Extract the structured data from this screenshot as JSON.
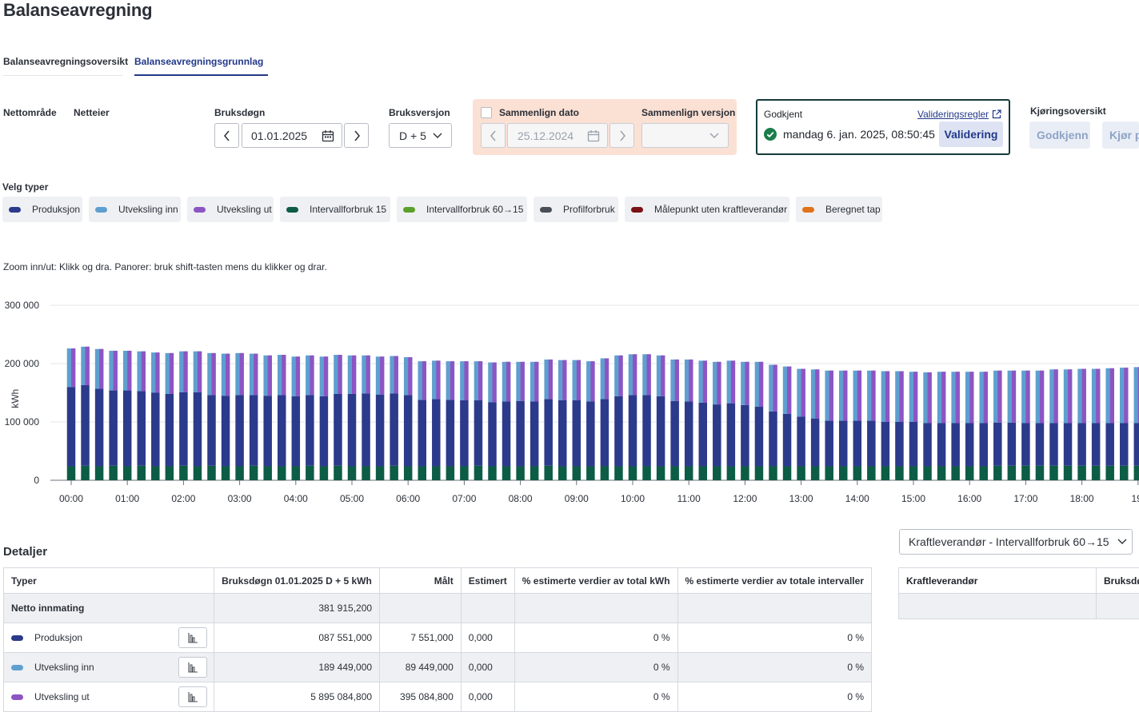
{
  "page_title": "Balanseavregning",
  "tabs": [
    {
      "label": "Balanseavregningsoversikt",
      "active": false
    },
    {
      "label": "Balanseavregningsgrunnlag",
      "active": true
    }
  ],
  "filters": {
    "nettomrade_label": "Nettområde",
    "netteier_label": "Netteier",
    "bruksdogn_label": "Bruksdøgn",
    "bruksdogn_value": "01.01.2025",
    "bruksversjon_label": "Bruksversjon",
    "bruksversjon_value": "D + 5",
    "compare_date_label": "Sammenlign dato",
    "compare_date_value": "25.12.2024",
    "compare_version_label": "Sammenlign versjon",
    "compare_version_value": ""
  },
  "approval": {
    "label": "Godkjent",
    "rules_link": "Valideringsregler",
    "timestamp": "mandag 6. jan. 2025, 08:50:45",
    "validate_button": "Validering"
  },
  "run_overview": {
    "label": "Kjøringsoversikt",
    "approve_button": "Godkjenn",
    "run_button": "Kjør p"
  },
  "types": {
    "label": "Velg typer",
    "items": [
      {
        "label": "Produksjon",
        "color": "#2c3a8c"
      },
      {
        "label": "Utveksling inn",
        "color": "#5f9fd0"
      },
      {
        "label": "Utveksling ut",
        "color": "#8d55c4"
      },
      {
        "label": "Intervallforbruk 15",
        "color": "#0d5c45"
      },
      {
        "label": "Intervallforbruk 60→15",
        "color": "#5aa02c"
      },
      {
        "label": "Profilforbruk",
        "color": "#4a4f57"
      },
      {
        "label": "Målepunkt uten kraftleverandør",
        "color": "#7a1216"
      },
      {
        "label": "Beregnet tap",
        "color": "#e0721a"
      }
    ]
  },
  "zoom_hint": "Zoom inn/ut: Klikk og dra. Panorer: bruk shift-tasten mens du klikker og drar.",
  "chart_data": {
    "type": "bar",
    "stacked": true,
    "ylabel": "kWh",
    "ylim": [
      0,
      300000
    ],
    "yticks": [
      "0",
      "100 000",
      "200 000",
      "300 000"
    ],
    "ytick_values": [
      0,
      100000,
      200000,
      300000
    ],
    "xticks": [
      "00:00",
      "01:00",
      "02:00",
      "03:00",
      "04:00",
      "05:00",
      "06:00",
      "07:00",
      "08:00",
      "09:00",
      "10:00",
      "11:00",
      "12:00",
      "13:00",
      "14:00",
      "15:00",
      "16:00",
      "17:00",
      "18:00",
      "19:"
    ],
    "grid": true,
    "series": [
      {
        "name": "Intervallforbruk 15",
        "color": "#0d5c45",
        "values": [
          24000,
          25000,
          24000,
          25000,
          24000,
          25000,
          24000,
          24000,
          25000,
          24000,
          25000,
          24000,
          24000,
          25000,
          24000,
          24000,
          24000,
          25000,
          24000,
          25000,
          24000,
          24000,
          24000,
          25000,
          24000,
          24000,
          24000,
          24000,
          24000,
          25000,
          24000,
          24000,
          24000,
          24000,
          25000,
          24000,
          24000,
          24000,
          24000,
          24000,
          24000,
          24000,
          24000,
          24000,
          24000,
          24000,
          24000,
          24000,
          24000,
          24000,
          24000,
          24000,
          24000,
          24000,
          24000,
          24000,
          24000,
          24000,
          24000,
          24000,
          24000,
          24000,
          24000,
          24000,
          24000,
          24000,
          25000,
          25000,
          25000,
          25000,
          25000,
          25000,
          25000,
          25000,
          25000,
          25000,
          25000,
          25000,
          25000,
          25000,
          25000,
          25000,
          25000,
          25000,
          25000,
          25000,
          25000,
          25000,
          25000,
          25000,
          25000,
          25000,
          25000,
          25000,
          25000,
          25000,
          25000,
          25000,
          25000,
          25000,
          25000,
          25000,
          25000,
          25000,
          25000,
          25000,
          25000,
          25000,
          25000,
          25000,
          25000,
          25000,
          25000,
          25000
        ]
      },
      {
        "name": "Produksjon",
        "color": "#2c3a8c",
        "values": [
          136000,
          138000,
          133000,
          129000,
          130000,
          128000,
          126000,
          124000,
          126000,
          127000,
          121000,
          121000,
          122000,
          121000,
          121000,
          122000,
          120000,
          121000,
          120000,
          123000,
          124000,
          125000,
          123000,
          124000,
          122000,
          114000,
          115000,
          114000,
          113000,
          112000,
          110000,
          111000,
          112000,
          111000,
          114000,
          113000,
          113000,
          111000,
          115000,
          120000,
          122000,
          122000,
          120000,
          112000,
          111000,
          109000,
          106000,
          108000,
          105000,
          102000,
          94000,
          90000,
          85000,
          82000,
          78000,
          78000,
          78000,
          78000,
          76000,
          76000,
          76000,
          74000,
          74000,
          74000,
          74000,
          74000,
          74000,
          74000,
          73000,
          73000,
          73000,
          73000,
          73000,
          73000,
          73000,
          73000,
          73000,
          73000,
          73000,
          73000,
          73000,
          73000,
          73000,
          73000,
          73000,
          73000,
          73000,
          73000,
          73000,
          73000,
          73000,
          73000,
          73000,
          73000,
          73000,
          73000,
          73000,
          73000,
          73000,
          73000,
          73000,
          73000,
          73000,
          73000,
          73000,
          73000,
          73000,
          73000,
          73000,
          73000,
          73000,
          73000,
          73000,
          73000
        ]
      },
      {
        "name": "Utveksling inn",
        "color": "#5f9fd0",
        "values": [
          66000,
          66000,
          68000,
          68000,
          68000,
          68000,
          69000,
          70000,
          70000,
          70000,
          72000,
          72000,
          72000,
          71000,
          69000,
          69000,
          68000,
          68000,
          68000,
          67000,
          66000,
          65000,
          65000,
          64000,
          65000,
          66000,
          66000,
          66000,
          67000,
          67000,
          68000,
          68000,
          67000,
          68000,
          68000,
          69000,
          69000,
          69000,
          70000,
          70000,
          70000,
          70000,
          70000,
          71000,
          72000,
          72000,
          73000,
          73000,
          74000,
          77000,
          80000,
          81000,
          82000,
          84000,
          86000,
          86000,
          86000,
          86000,
          87000,
          87000,
          86000,
          87000,
          88000,
          88000,
          88000,
          88000,
          89000,
          89000,
          90000,
          90000,
          92000,
          92000,
          93000,
          93000,
          94000,
          95000,
          96000,
          96000,
          96000,
          98000,
          100000,
          100000,
          100000,
          100000,
          101000,
          102000,
          101000,
          101000,
          101000,
          101000,
          101000,
          101000,
          101000,
          101000,
          102000,
          102000,
          102000,
          102000,
          102000,
          102000,
          102000,
          101000,
          101000,
          101000,
          101000,
          101000,
          101000,
          101000,
          101000,
          101000,
          100000,
          100000,
          100000,
          100000
        ]
      }
    ]
  },
  "details": {
    "title": "Detaljer",
    "kraft_select": "Kraftleverandør - Intervallforbruk 60→15",
    "columns": [
      "Typer",
      "Bruksdøgn 01.01.2025  D + 5  kWh",
      "Målt",
      "Estimert",
      "% estimerte verdier av total kWh",
      "% estimerte verdier av totale intervaller"
    ],
    "netto": {
      "label": "Netto innmating",
      "value": "381 915,200"
    },
    "rows": [
      {
        "label": "Produksjon",
        "color": "#2c3a8c",
        "kwh": "087 551,000",
        "malt": "7 551,000",
        "estimert": "0,000",
        "pct_kwh": "0 %",
        "pct_int": "0 %"
      },
      {
        "label": "Utveksling inn",
        "color": "#5f9fd0",
        "kwh": "189 449,000",
        "malt": "89 449,000",
        "estimert": "0,000",
        "pct_kwh": "0 %",
        "pct_int": "0 %"
      },
      {
        "label": "Utveksling ut",
        "color": "#8d55c4",
        "kwh": "5 895 084,800",
        "malt": "395 084,800",
        "estimert": "0,000",
        "pct_kwh": "0 %",
        "pct_int": "0 %"
      }
    ],
    "side_columns": [
      "Kraftleverandør",
      "Bruksdø"
    ]
  }
}
